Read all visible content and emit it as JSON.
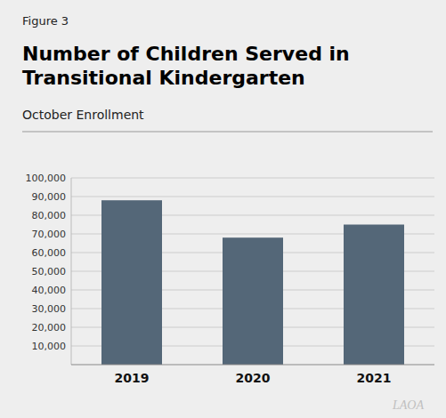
{
  "chart_data": {
    "type": "bar",
    "title": "Number of Children Served in\nTransitional Kindergarten",
    "subtitle": "October Enrollment",
    "annotations": [
      "Figure 3",
      "LAOA"
    ],
    "categories": [
      "2019",
      "2020",
      "2021"
    ],
    "values": [
      88000,
      68000,
      75000
    ],
    "color": "#546778",
    "ylim": [
      0,
      100000
    ],
    "yticks": [
      {
        "value": 10000,
        "label": "10,000"
      },
      {
        "value": 20000,
        "label": "20,000"
      },
      {
        "value": 30000,
        "label": "30,000"
      },
      {
        "value": 40000,
        "label": "40,000"
      },
      {
        "value": 50000,
        "label": "50,000"
      },
      {
        "value": 60000,
        "label": "60,000"
      },
      {
        "value": 70000,
        "label": "70,000"
      },
      {
        "value": 80000,
        "label": "80,000"
      },
      {
        "value": 90000,
        "label": "90,000"
      },
      {
        "value": 100000,
        "label": "100,000"
      }
    ],
    "grid": true
  }
}
